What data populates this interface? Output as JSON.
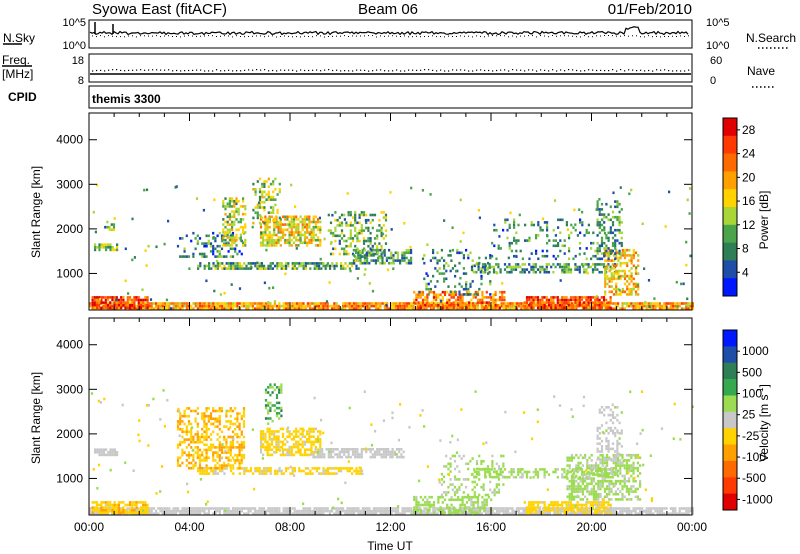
{
  "header": {
    "radar": "Syowa East (fitACF)",
    "beam": "Beam 06",
    "date": "01/Feb/2010"
  },
  "status_panels": {
    "noise": {
      "left_label": "N.Sky",
      "left_ticks": [
        "10^5",
        "10^0"
      ],
      "right_label": "N.Search",
      "right_ticks": [
        "10^5",
        "10^0"
      ]
    },
    "freq": {
      "left_label_1": "Freq.",
      "left_label_2": "[MHz]",
      "left_ticks": [
        "18",
        "8"
      ],
      "right_label": "Nave",
      "right_ticks": [
        "60",
        "0"
      ]
    },
    "cpid": {
      "label": "CPID",
      "value": "themis 3300"
    }
  },
  "colors": {
    "power": [
      "#0018ff",
      "#1e4ea8",
      "#2f7f56",
      "#4aa54a",
      "#a7d636",
      "#ffd200",
      "#ffa000",
      "#ff6a00",
      "#ff3a00",
      "#e00000"
    ],
    "velocity": [
      "#0018ff",
      "#1e4ea8",
      "#2f7f56",
      "#36a84d",
      "#9bdc50",
      "#c8c8c8",
      "#ffd200",
      "#ffa000",
      "#ff6a00",
      "#ff3a00",
      "#e00000"
    ]
  },
  "chart_data": [
    {
      "type": "heatmap",
      "name": "power",
      "xlabel": "",
      "ylabel": "Slant Range [km]",
      "x_ticks": [
        "00:00",
        "04:00",
        "08:00",
        "12:00",
        "16:00",
        "20:00",
        "00:00"
      ],
      "y_ticks": [
        "1000",
        "2000",
        "3000",
        "4000"
      ],
      "xlim": [
        0,
        24
      ],
      "ylim": [
        180,
        4600
      ],
      "colorbar_label": "Power [dB]",
      "colorbar_ticks": [
        "4",
        "8",
        "12",
        "16",
        "20",
        "24",
        "28"
      ],
      "colorbar_range": [
        0,
        30
      ],
      "bands": [
        {
          "x0": 0.0,
          "x1": 24.0,
          "y0": 180,
          "y1": 330,
          "value": 20,
          "density": 0.9
        },
        {
          "x0": 0.1,
          "x1": 2.3,
          "y0": 200,
          "y1": 480,
          "value": 26,
          "density": 0.8
        },
        {
          "x0": 0.2,
          "x1": 1.1,
          "y0": 1500,
          "y1": 1660,
          "value": 12,
          "density": 0.75
        },
        {
          "x0": 0.6,
          "x1": 1.0,
          "y0": 1950,
          "y1": 2150,
          "value": 10,
          "density": 0.5
        },
        {
          "x0": 4.3,
          "x1": 10.8,
          "y0": 1080,
          "y1": 1200,
          "value": 10,
          "density": 0.65
        },
        {
          "x0": 3.5,
          "x1": 6.2,
          "y0": 1350,
          "y1": 1900,
          "value": 7,
          "density": 0.25
        },
        {
          "x0": 5.3,
          "x1": 6.2,
          "y0": 1600,
          "y1": 2700,
          "value": 14,
          "density": 0.55
        },
        {
          "x0": 6.8,
          "x1": 9.2,
          "y0": 1600,
          "y1": 2300,
          "value": 17,
          "density": 0.65
        },
        {
          "x0": 6.5,
          "x1": 7.6,
          "y0": 2100,
          "y1": 3100,
          "value": 13,
          "density": 0.35
        },
        {
          "x0": 9.5,
          "x1": 11.8,
          "y0": 1350,
          "y1": 2350,
          "value": 11,
          "density": 0.4
        },
        {
          "x0": 10.5,
          "x1": 12.8,
          "y0": 1200,
          "y1": 1500,
          "value": 9,
          "density": 0.6
        },
        {
          "x0": 12.9,
          "x1": 16.5,
          "y0": 200,
          "y1": 560,
          "value": 22,
          "density": 0.55
        },
        {
          "x0": 13.3,
          "x1": 16.0,
          "y0": 500,
          "y1": 1500,
          "value": 8,
          "density": 0.18
        },
        {
          "x0": 15.2,
          "x1": 21.0,
          "y0": 1000,
          "y1": 1200,
          "value": 9,
          "density": 0.55
        },
        {
          "x0": 17.3,
          "x1": 20.8,
          "y0": 200,
          "y1": 480,
          "value": 25,
          "density": 0.8
        },
        {
          "x0": 16.0,
          "x1": 20.5,
          "y0": 1300,
          "y1": 2200,
          "value": 8,
          "density": 0.18
        },
        {
          "x0": 20.5,
          "x1": 21.9,
          "y0": 500,
          "y1": 1500,
          "value": 18,
          "density": 0.55
        },
        {
          "x0": 20.2,
          "x1": 21.2,
          "y0": 1300,
          "y1": 2600,
          "value": 9,
          "density": 0.4
        }
      ]
    },
    {
      "type": "heatmap",
      "name": "velocity",
      "xlabel": "Time UT",
      "ylabel": "Slant Range [km]",
      "x_ticks": [
        "00:00",
        "04:00",
        "08:00",
        "12:00",
        "16:00",
        "20:00",
        "00:00"
      ],
      "y_ticks": [
        "1000",
        "2000",
        "3000",
        "4000"
      ],
      "xlim": [
        0,
        24
      ],
      "ylim": [
        180,
        4600
      ],
      "colorbar_label": "Velocity [m s",
      "colorbar_label_sup": "-1",
      "colorbar_ticks": [
        "1000",
        "500",
        "100",
        "25",
        "-25",
        "-100",
        "-500",
        "-1000"
      ],
      "colorbar_range": [
        -1200,
        1200
      ],
      "bands": [
        {
          "x0": 0.0,
          "x1": 24.0,
          "y0": 180,
          "y1": 320,
          "value": -5,
          "density": 0.85
        },
        {
          "x0": 0.1,
          "x1": 2.3,
          "y0": 200,
          "y1": 480,
          "value": -250,
          "density": 0.8
        },
        {
          "x0": 0.2,
          "x1": 1.1,
          "y0": 1500,
          "y1": 1660,
          "value": 0,
          "density": 0.75
        },
        {
          "x0": 4.3,
          "x1": 10.8,
          "y0": 1080,
          "y1": 1200,
          "value": -150,
          "density": 0.6
        },
        {
          "x0": 3.5,
          "x1": 6.2,
          "y0": 1200,
          "y1": 2600,
          "value": -300,
          "density": 0.45
        },
        {
          "x0": 6.8,
          "x1": 9.2,
          "y0": 1500,
          "y1": 2100,
          "value": -200,
          "density": 0.6
        },
        {
          "x0": 7.0,
          "x1": 7.7,
          "y0": 2200,
          "y1": 3100,
          "value": 400,
          "density": 0.35
        },
        {
          "x0": 8.8,
          "x1": 12.5,
          "y0": 1450,
          "y1": 1650,
          "value": 5,
          "density": 0.7
        },
        {
          "x0": 12.9,
          "x1": 16.0,
          "y0": 200,
          "y1": 560,
          "value": 200,
          "density": 0.5
        },
        {
          "x0": 14.0,
          "x1": 16.5,
          "y0": 600,
          "y1": 1500,
          "value": 150,
          "density": 0.25
        },
        {
          "x0": 15.2,
          "x1": 21.0,
          "y0": 1000,
          "y1": 1200,
          "value": 180,
          "density": 0.55
        },
        {
          "x0": 17.3,
          "x1": 20.8,
          "y0": 200,
          "y1": 480,
          "value": -200,
          "density": 0.75
        },
        {
          "x0": 19.0,
          "x1": 21.9,
          "y0": 500,
          "y1": 1500,
          "value": 150,
          "density": 0.55
        },
        {
          "x0": 20.2,
          "x1": 21.2,
          "y0": 1400,
          "y1": 2600,
          "value": 60,
          "density": 0.35
        }
      ]
    }
  ]
}
